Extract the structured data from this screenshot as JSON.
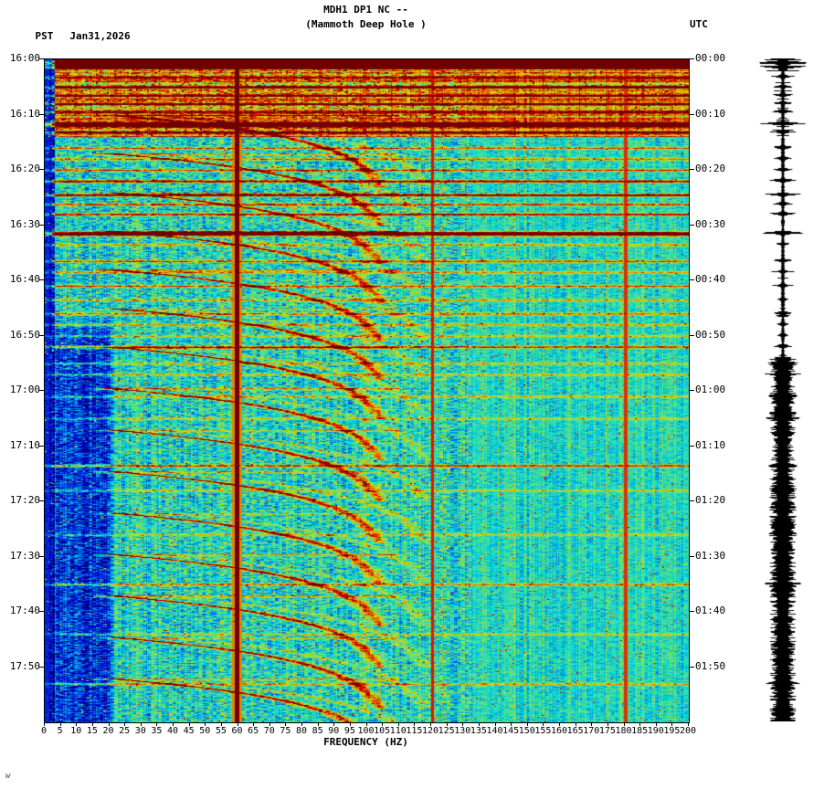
{
  "header": {
    "pst_label": "PST",
    "date": "Jan31,2026",
    "title": "MDH1 DP1 NC --",
    "subtitle": "(Mammoth Deep Hole )",
    "utc_label": "UTC"
  },
  "axes": {
    "x": {
      "label": "FREQUENCY (HZ)",
      "ticks": [
        0,
        5,
        10,
        15,
        20,
        25,
        30,
        35,
        40,
        45,
        50,
        55,
        60,
        65,
        70,
        75,
        80,
        85,
        90,
        95,
        100,
        105,
        110,
        115,
        120,
        125,
        130,
        135,
        140,
        145,
        150,
        155,
        160,
        165,
        170,
        175,
        180,
        185,
        190,
        195,
        200
      ]
    },
    "y_left": [
      "16:00",
      "16:10",
      "16:20",
      "16:30",
      "16:40",
      "16:50",
      "17:00",
      "17:10",
      "17:20",
      "17:30",
      "17:40",
      "17:50"
    ],
    "y_right": [
      "00:00",
      "00:10",
      "00:20",
      "00:30",
      "00:40",
      "00:50",
      "01:00",
      "01:10",
      "01:20",
      "01:30",
      "01:40",
      "01:50"
    ]
  },
  "footer": {
    "mark": "w"
  },
  "chart_data": {
    "type": "heatmap",
    "title": "MDH1 DP1 NC --",
    "subtitle": "(Mammoth Deep Hole )",
    "station": "MDH1 DP1 NC",
    "station_name": "Mammoth Deep Hole",
    "date_pst": "Jan31,2026",
    "xlabel": "FREQUENCY (HZ)",
    "x_range_hz": [
      0,
      200
    ],
    "x_tick_step_hz": 5,
    "time_start_pst": "16:00",
    "time_start_utc": "00:00",
    "duration_minutes": 120,
    "time_tick_step_minutes": 10,
    "colormap": "jet",
    "features": {
      "mains_hum_lines_hz": [
        60,
        120,
        180
      ],
      "active_band_minutes": [
        0,
        14
      ],
      "quiet_low_freq_region": {
        "hz": [
          3,
          22
        ],
        "from_minute": 46
      },
      "broadband_events": [
        [
          0.6,
          0.85
        ],
        [
          1.4,
          0.7
        ],
        [
          3.2,
          0.45
        ],
        [
          5,
          0.45
        ],
        [
          6.5,
          0.4
        ],
        [
          8,
          0.4
        ],
        [
          9.5,
          0.45
        ],
        [
          11.7,
          1.05
        ],
        [
          13.2,
          0.5
        ],
        [
          16,
          0.4
        ],
        [
          18,
          0.35
        ],
        [
          20,
          0.45
        ],
        [
          22,
          0.65
        ],
        [
          24.5,
          0.75
        ],
        [
          26.2,
          0.45
        ],
        [
          28,
          0.55
        ],
        [
          31.5,
          0.95
        ],
        [
          33.5,
          0.3
        ],
        [
          36.5,
          0.4
        ],
        [
          38.5,
          0.3
        ],
        [
          41,
          0.4
        ],
        [
          43.5,
          0.3
        ],
        [
          46,
          0.35
        ],
        [
          48,
          0.3
        ],
        [
          50,
          0.25
        ],
        [
          52,
          0.45
        ],
        [
          55,
          0.25
        ],
        [
          57,
          0.25
        ],
        [
          61,
          0.25
        ],
        [
          65,
          0.2
        ],
        [
          73.5,
          0.45
        ],
        [
          78,
          0.2
        ],
        [
          86,
          0.2
        ],
        [
          95,
          0.35
        ],
        [
          104,
          0.2
        ],
        [
          113,
          0.3
        ]
      ],
      "gliding_arc_onsets_minutes": [
        10,
        17,
        24,
        31,
        38,
        45,
        52,
        59.5,
        67,
        74.5,
        82,
        89.5,
        97,
        104.5,
        112
      ],
      "arc_freq_start_hz": 20,
      "arc_freq_end_hz": 108,
      "arc_duration_minutes": 13
    },
    "side_trace": {
      "type": "seismogram",
      "position": "right",
      "aligned_to": "time axis"
    }
  }
}
